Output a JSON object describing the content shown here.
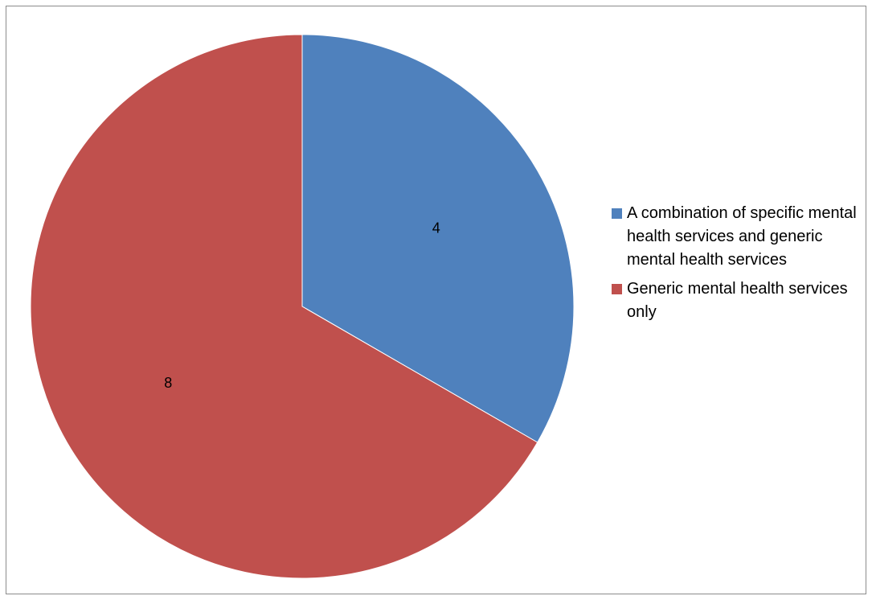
{
  "chart_data": {
    "type": "pie",
    "title": "",
    "categories": [
      "A combination of specific mental health services and generic mental health services",
      "Generic mental health services only"
    ],
    "values": [
      4,
      8
    ],
    "data_labels": [
      "4",
      "8"
    ],
    "colors": [
      "#4f81bd",
      "#c0504d"
    ],
    "start_angle": "12 o'clock, clockwise",
    "legend_position": "right"
  }
}
